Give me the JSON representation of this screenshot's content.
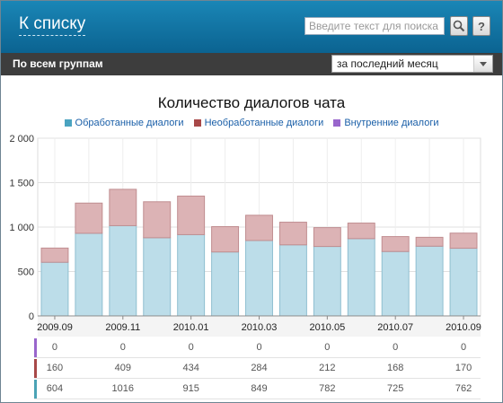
{
  "header": {
    "back_label": "К списку",
    "search_placeholder": "Введите текст для поиска",
    "help_label": "?"
  },
  "toolbar": {
    "group_label": "По всем группам",
    "period_value": "за последний месяц"
  },
  "icons": {
    "search": "magnifier-icon",
    "help": "question-icon",
    "dropdown": "chevron-down-icon"
  },
  "chart_data": {
    "type": "bar",
    "stacked": true,
    "title": "Количество диалогов чата",
    "legend": [
      "Обработанные диалоги",
      "Необработанные диалоги",
      "Внутренние диалоги"
    ],
    "legend_placement": "top",
    "ylim": [
      0,
      2000
    ],
    "yticks": [
      "0",
      "500",
      "1 000",
      "1 500",
      "2 000"
    ],
    "xtick_labels": [
      "2009.09",
      "2009.11",
      "2010.01",
      "2010.03",
      "2010.05",
      "2010.07",
      "2010.09"
    ],
    "categories": [
      "2009.09",
      "2009.10",
      "2009.11",
      "2009.12",
      "2010.01",
      "2010.02",
      "2010.03",
      "2010.04",
      "2010.05",
      "2010.06",
      "2010.07",
      "2010.08",
      "2010.09"
    ],
    "grid": true,
    "series": [
      {
        "name": "Обработанные диалоги",
        "color": "#bcdde9",
        "values": [
          604,
          930,
          1016,
          880,
          915,
          720,
          849,
          800,
          782,
          870,
          725,
          785,
          762
        ]
      },
      {
        "name": "Необработанные диалоги",
        "color": "#dcb3b5",
        "values": [
          160,
          340,
          409,
          405,
          434,
          285,
          284,
          255,
          212,
          175,
          168,
          100,
          170
        ]
      },
      {
        "name": "Внутренние диалоги",
        "color": "#9966cc",
        "values": [
          0,
          0,
          0,
          0,
          0,
          0,
          0,
          0,
          0,
          0,
          0,
          0,
          0
        ]
      }
    ]
  },
  "table": {
    "rows": [
      {
        "color": "#9966cc",
        "values": [
          "0",
          "0",
          "0",
          "0",
          "0",
          "0",
          "0"
        ]
      },
      {
        "color": "#a84848",
        "values": [
          "160",
          "409",
          "434",
          "284",
          "212",
          "168",
          "170"
        ]
      },
      {
        "color": "#4aa3b5",
        "values": [
          "604",
          "1016",
          "915",
          "849",
          "782",
          "725",
          "762"
        ]
      }
    ]
  }
}
